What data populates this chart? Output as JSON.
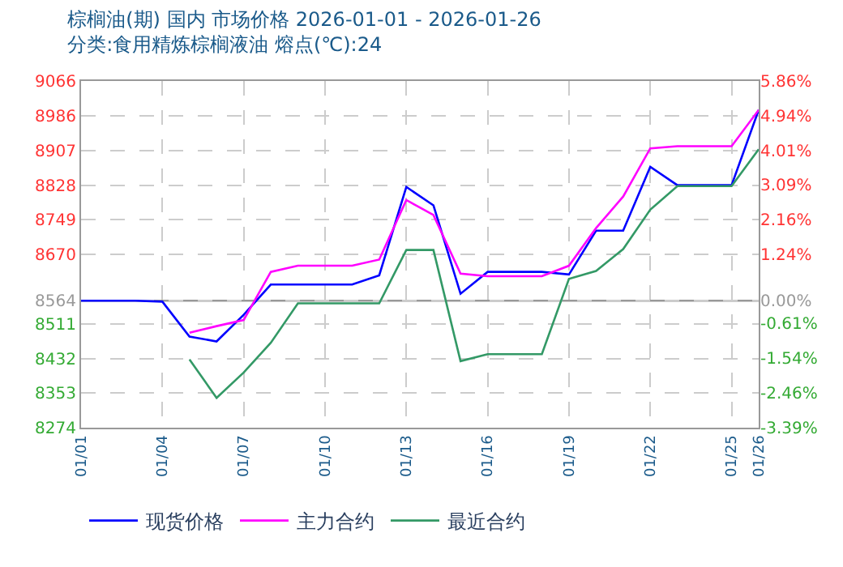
{
  "chart_data": {
    "type": "line",
    "title": "棕榈油(期) 国内 市场价格 2026-01-01 - 2026-01-26",
    "subtitle": "分类:食用精炼棕榈液油 熔点(℃):24",
    "x": [
      "2026-01-01",
      "2026-01-02",
      "2026-01-03",
      "2026-01-04",
      "2026-01-05",
      "2026-01-06",
      "2026-01-07",
      "2026-01-08",
      "2026-01-09",
      "2026-01-10",
      "2026-01-11",
      "2026-01-12",
      "2026-01-13",
      "2026-01-14",
      "2026-01-15",
      "2026-01-16",
      "2026-01-17",
      "2026-01-18",
      "2026-01-19",
      "2026-01-20",
      "2026-01-21",
      "2026-01-22",
      "2026-01-23",
      "2026-01-24",
      "2026-01-25",
      "2026-01-26"
    ],
    "series": [
      {
        "name": "现货价格",
        "color": "#0000ff",
        "values": [
          8564,
          8564,
          8564,
          8562,
          8482,
          8471,
          8532,
          8601,
          8601,
          8601,
          8601,
          8622,
          8824,
          8782,
          8580,
          8630,
          8630,
          8630,
          8624,
          8724,
          8724,
          8870,
          8828,
          8828,
          8828,
          9000
        ]
      },
      {
        "name": "主力合约",
        "color": "#ff00ff",
        "values": [
          null,
          null,
          null,
          null,
          8491,
          8506,
          8520,
          8630,
          8644,
          8644,
          8644,
          8658,
          8794,
          8760,
          8626,
          8620,
          8620,
          8620,
          8644,
          8730,
          8802,
          8912,
          8917,
          8917,
          8917,
          9000
        ]
      },
      {
        "name": "最近合约",
        "color": "#339966",
        "values": [
          null,
          null,
          null,
          null,
          8430,
          8342,
          8400,
          8468,
          8558,
          8558,
          8558,
          8558,
          8680,
          8680,
          8426,
          8442,
          8442,
          8442,
          8614,
          8632,
          8682,
          8772,
          8826,
          8826,
          8826,
          8910
        ]
      }
    ],
    "xlim": [
      "2026-01-01",
      "2026-01-26"
    ],
    "xticks": [
      {
        "value": "2026-01-01",
        "label": "01/01"
      },
      {
        "value": "2026-01-04",
        "label": "01/04"
      },
      {
        "value": "2026-01-07",
        "label": "01/07"
      },
      {
        "value": "2026-01-10",
        "label": "01/10"
      },
      {
        "value": "2026-01-13",
        "label": "01/13"
      },
      {
        "value": "2026-01-16",
        "label": "01/16"
      },
      {
        "value": "2026-01-19",
        "label": "01/19"
      },
      {
        "value": "2026-01-22",
        "label": "01/22"
      },
      {
        "value": "2026-01-25",
        "label": "01/25"
      },
      {
        "value": "2026-01-26",
        "label": "01/26"
      }
    ],
    "ylim": [
      8274,
      9066
    ],
    "yticks": [
      8274,
      8353,
      8432,
      8511,
      8564,
      8670,
      8749,
      8828,
      8907,
      8986,
      9066
    ],
    "y2lim": [
      -3.39,
      5.86
    ],
    "y2ticks": [
      {
        "value": -3.39,
        "label": "-3.39%"
      },
      {
        "value": -2.46,
        "label": "-2.46%"
      },
      {
        "value": -1.54,
        "label": "-1.54%"
      },
      {
        "value": -0.61,
        "label": "-0.61%"
      },
      {
        "value": 0,
        "label": "0.00%"
      },
      {
        "value": 1.24,
        "label": "1.24%"
      },
      {
        "value": 2.16,
        "label": "2.16%"
      },
      {
        "value": 3.09,
        "label": "3.09%"
      },
      {
        "value": 4.01,
        "label": "4.01%"
      },
      {
        "value": 4.94,
        "label": "4.94%"
      },
      {
        "value": 5.86,
        "label": "5.86%"
      }
    ],
    "ref_lines": [
      {
        "axis": "y",
        "value": 8564,
        "color": "#999999"
      }
    ],
    "grid": true,
    "legend": "bottom",
    "marker": "none",
    "line_style": "solid"
  }
}
